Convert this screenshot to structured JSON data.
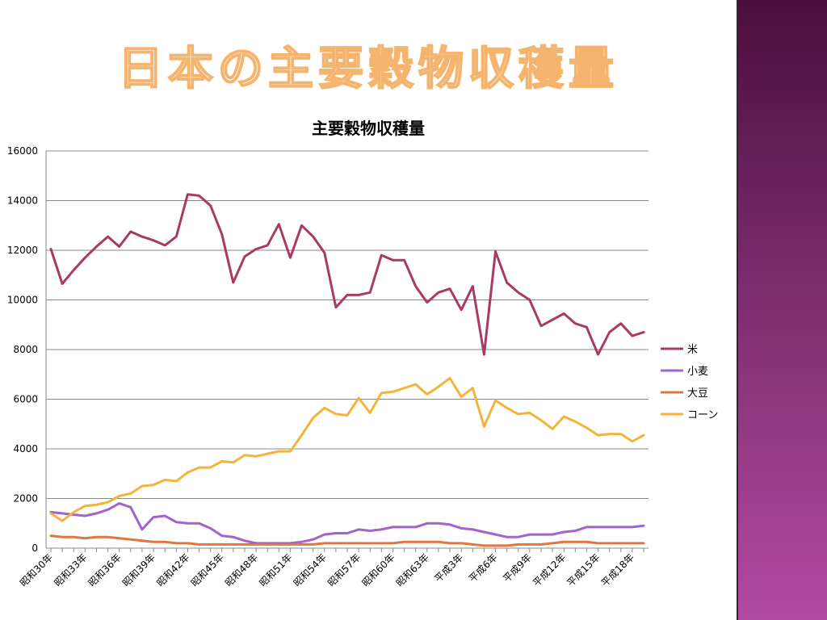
{
  "slide": {
    "title": "日本の主要穀物収穫量"
  },
  "chart_data": {
    "type": "line",
    "title": "主要穀物収穫量",
    "xlabel": "",
    "ylabel": "",
    "ylim": [
      0,
      16000
    ],
    "yticks": [
      0,
      2000,
      4000,
      6000,
      8000,
      10000,
      12000,
      14000,
      16000
    ],
    "grid": true,
    "legend_position": "right",
    "x_tick_labels": [
      "昭和30年",
      "昭和33年",
      "昭和36年",
      "昭和39年",
      "昭和42年",
      "昭和45年",
      "昭和48年",
      "昭和51年",
      "昭和54年",
      "昭和57年",
      "昭和60年",
      "昭和63年",
      "平成3年",
      "平成6年",
      "平成9年",
      "平成12年",
      "平成15年",
      "平成18年"
    ],
    "series": [
      {
        "name": "米",
        "color": "#a83a65",
        "values": [
          12050,
          10650,
          11200,
          11700,
          12150,
          12550,
          12150,
          12750,
          12550,
          12400,
          12200,
          12550,
          14250,
          14200,
          13800,
          12650,
          10700,
          11750,
          12050,
          12200,
          13050,
          11700,
          13000,
          12550,
          11900,
          9700,
          10200,
          10200,
          10300,
          11800,
          11600,
          11600,
          10550,
          9900,
          10300,
          10450,
          9600,
          10550,
          7800,
          11950,
          10700,
          10300,
          10000,
          8950,
          9200,
          9450,
          9050,
          8900,
          7800,
          8700,
          9050,
          8550,
          8700
        ]
      },
      {
        "name": "小麦",
        "color": "#a463c8",
        "values": [
          1450,
          1400,
          1350,
          1300,
          1400,
          1550,
          1800,
          1650,
          750,
          1250,
          1300,
          1050,
          1000,
          1000,
          800,
          500,
          450,
          300,
          200,
          200,
          200,
          200,
          250,
          350,
          550,
          600,
          600,
          750,
          700,
          750,
          850,
          850,
          850,
          1000,
          1000,
          950,
          800,
          750,
          650,
          550,
          450,
          450,
          550,
          550,
          550,
          650,
          700,
          850,
          850,
          850,
          850,
          850,
          900
        ]
      },
      {
        "name": "大豆",
        "color": "#e07640",
        "values": [
          500,
          450,
          450,
          400,
          450,
          450,
          400,
          350,
          300,
          250,
          250,
          200,
          200,
          150,
          150,
          150,
          150,
          150,
          150,
          150,
          150,
          150,
          150,
          150,
          200,
          200,
          200,
          200,
          200,
          200,
          200,
          250,
          250,
          250,
          250,
          200,
          200,
          150,
          100,
          100,
          100,
          150,
          150,
          150,
          200,
          250,
          250,
          250,
          200,
          200,
          200,
          200,
          200
        ]
      },
      {
        "name": "コーン",
        "color": "#f2b43a",
        "values": [
          1400,
          1100,
          1450,
          1700,
          1750,
          1850,
          2100,
          2200,
          2500,
          2550,
          2750,
          2700,
          3050,
          3250,
          3250,
          3500,
          3450,
          3750,
          3700,
          3800,
          3900,
          3900,
          4550,
          5250,
          5650,
          5400,
          5350,
          6050,
          5450,
          6250,
          6300,
          6450,
          6600,
          6200,
          6500,
          6850,
          6100,
          6450,
          4900,
          5950,
          5650,
          5400,
          5450,
          5150,
          4800,
          5300,
          5100,
          4850,
          4550,
          4600,
          4600,
          4300,
          4550
        ]
      }
    ]
  }
}
